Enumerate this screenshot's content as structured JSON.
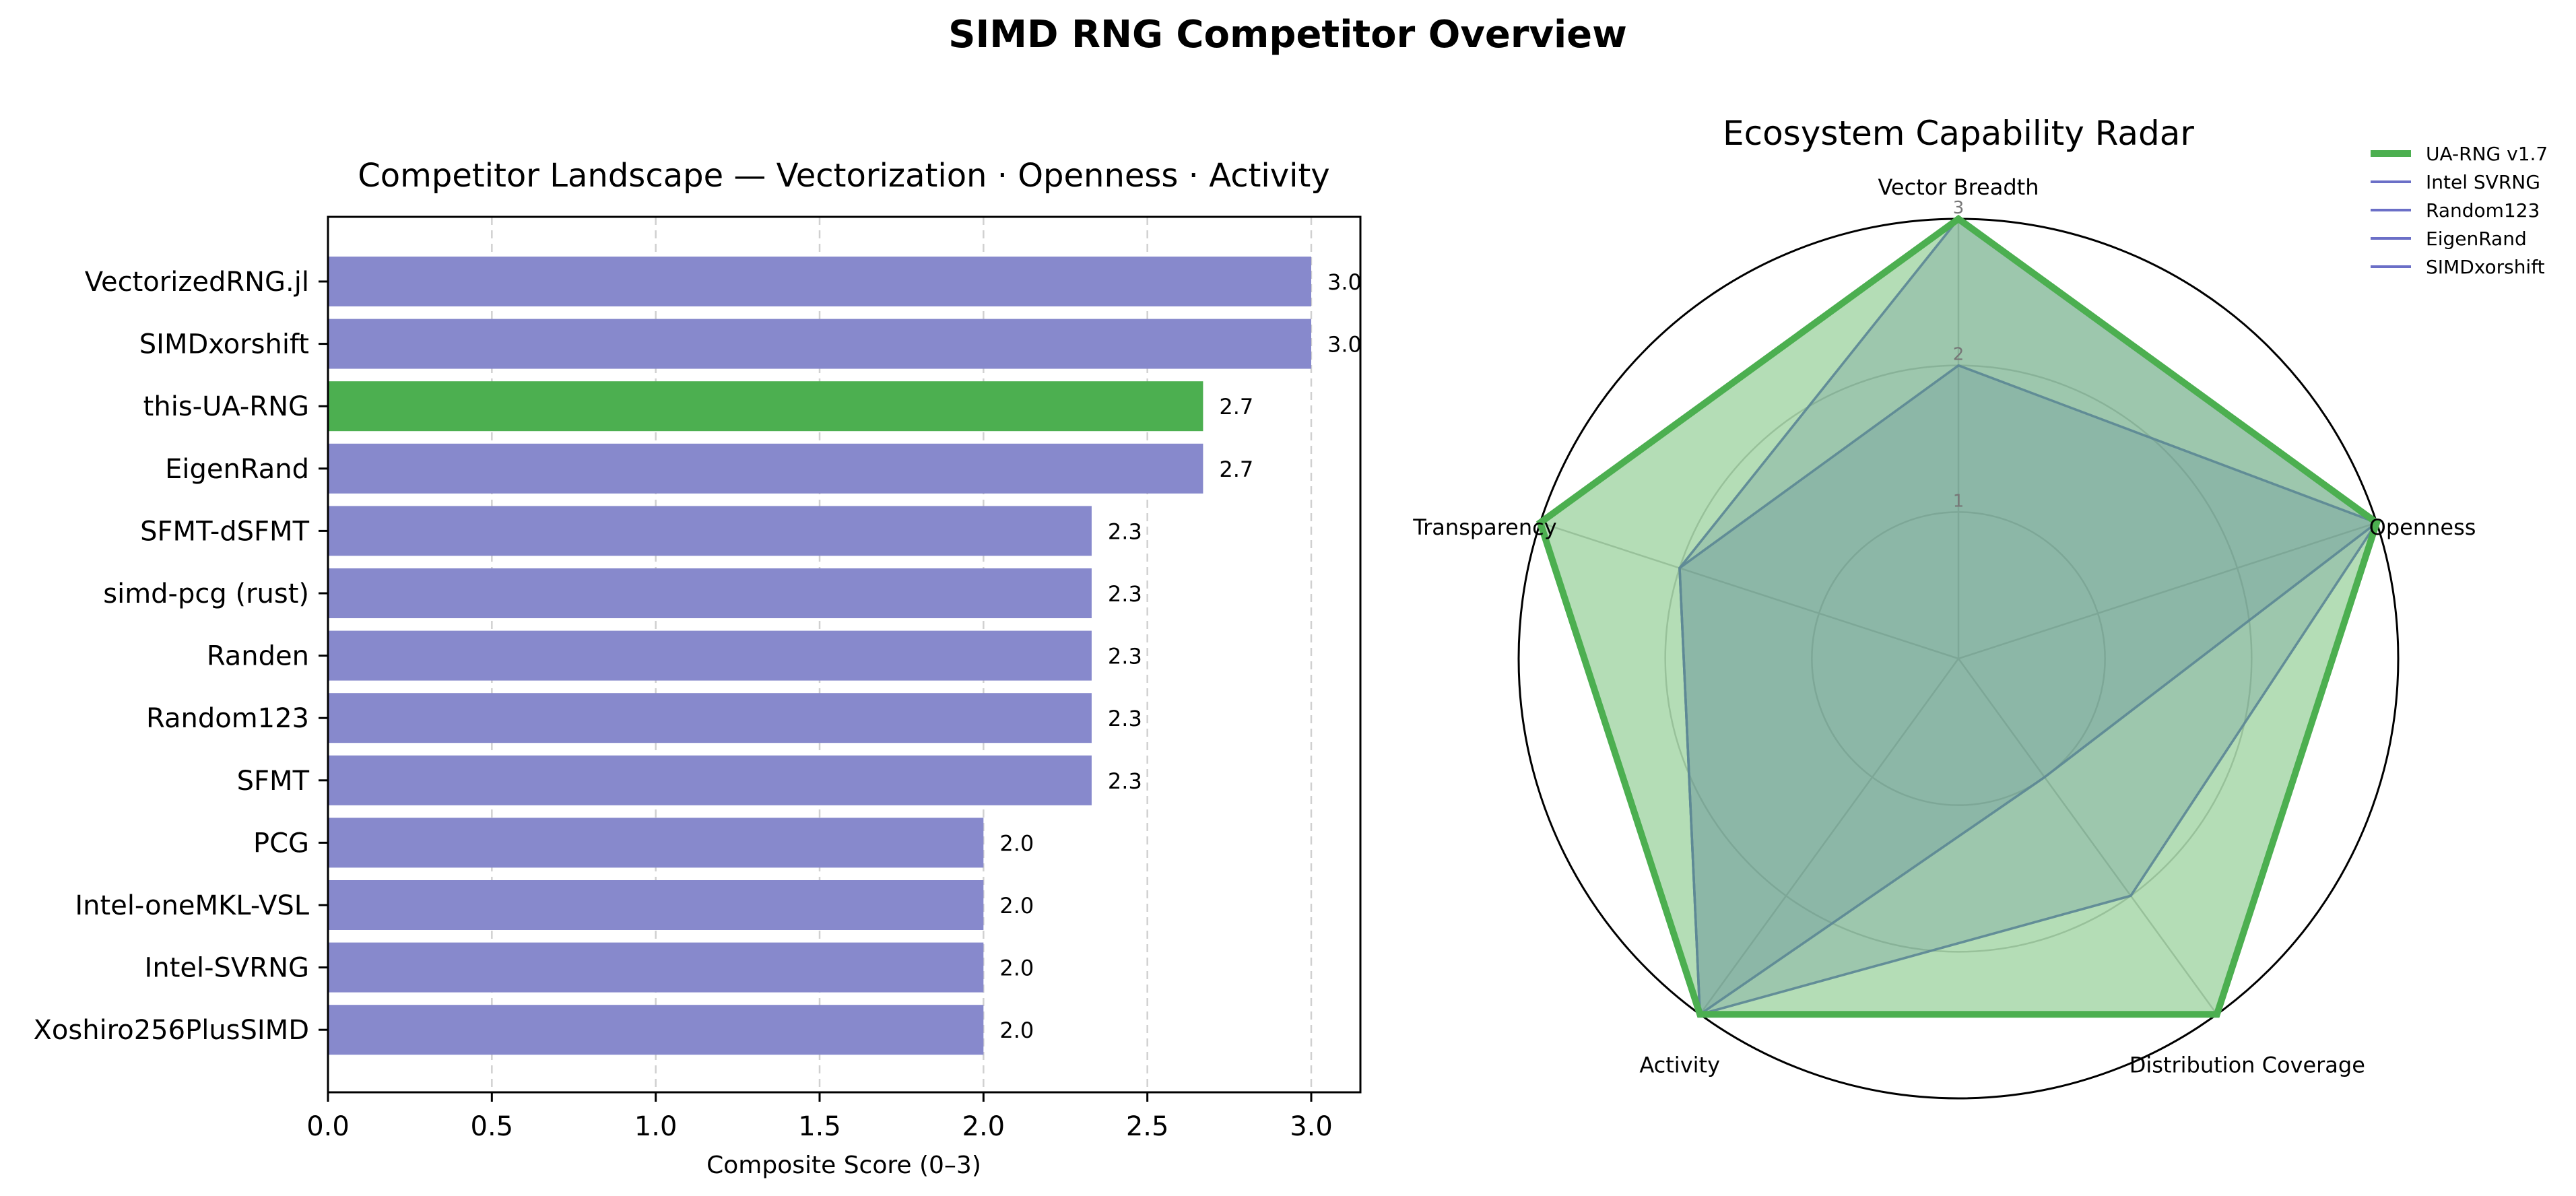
{
  "figure": {
    "title": "SIMD RNG Competitor Overview"
  },
  "colors": {
    "highlight": "#4caf50",
    "bar": "#8789cc",
    "radar_line": "#6b6fc7",
    "axis": "#000000"
  },
  "chart_data": [
    {
      "type": "bar",
      "orientation": "horizontal",
      "title": "Competitor Landscape — Vectorization · Openness · Activity",
      "xlabel": "Composite Score (0–3)",
      "ylabel": "",
      "xlim": [
        0,
        3.15
      ],
      "xticks": [
        "0.0",
        "0.5",
        "1.0",
        "1.5",
        "2.0",
        "2.5",
        "3.0"
      ],
      "grid": "vertical dashed",
      "categories": [
        "VectorizedRNG.jl",
        "SIMDxorshift",
        "this-UA-RNG",
        "EigenRand",
        "SFMT-dSFMT",
        "simd-pcg (rust)",
        "Randen",
        "Random123",
        "SFMT",
        "PCG",
        "Intel-oneMKL-VSL",
        "Intel-SVRNG",
        "Xoshiro256PlusSIMD"
      ],
      "values": [
        3.0,
        3.0,
        2.67,
        2.67,
        2.33,
        2.33,
        2.33,
        2.33,
        2.33,
        2.0,
        2.0,
        2.0,
        2.0
      ],
      "data_labels": [
        "3.0",
        "3.0",
        "2.7",
        "2.7",
        "2.3",
        "2.3",
        "2.3",
        "2.3",
        "2.3",
        "2.0",
        "2.0",
        "2.0",
        "2.0"
      ],
      "highlight": "this-UA-RNG"
    },
    {
      "type": "radar",
      "title": "Ecosystem Capability Radar",
      "axes": [
        "Vector Breadth",
        "Openness",
        "Distribution Coverage",
        "Activity",
        "Transparency"
      ],
      "rlim": [
        0,
        3
      ],
      "rticks": [
        "1",
        "2",
        "3"
      ],
      "legend_position": "top-right",
      "series": [
        {
          "name": "UA-RNG v1.7",
          "values": [
            3,
            3,
            3,
            3,
            3
          ],
          "color": "#4caf50"
        },
        {
          "name": "Intel SVRNG",
          "values": [
            2,
            3,
            1,
            3,
            2
          ],
          "color": "#6b6fc7"
        },
        {
          "name": "Random123",
          "values": [
            2,
            3,
            1,
            3,
            2
          ],
          "color": "#6b6fc7"
        },
        {
          "name": "EigenRand",
          "values": [
            3,
            3,
            2,
            3,
            2
          ],
          "color": "#6b6fc7"
        },
        {
          "name": "SIMDxorshift",
          "values": [
            3,
            3,
            2,
            3,
            2
          ],
          "color": "#6b6fc7"
        }
      ]
    }
  ]
}
